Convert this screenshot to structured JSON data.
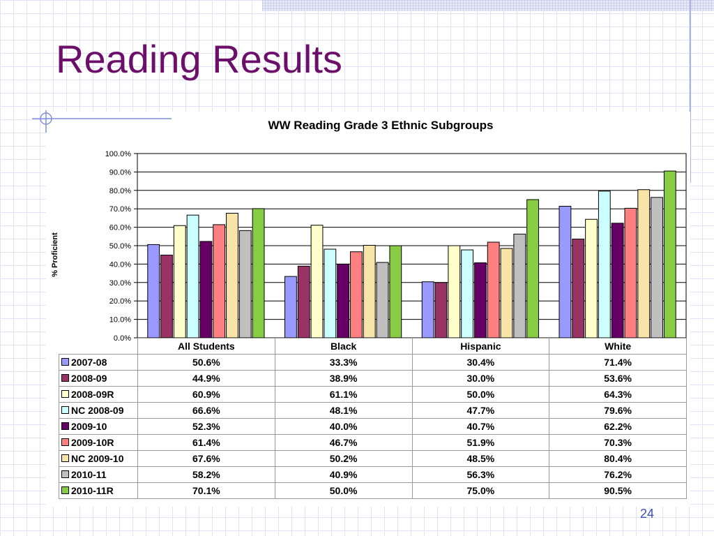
{
  "slide": {
    "title": "Reading Results",
    "page_number": "24"
  },
  "chart_data": {
    "type": "bar",
    "title": "WW Reading Grade 3 Ethnic Subgroups",
    "xlabel": "",
    "ylabel": "% Proficient",
    "ylim": [
      0,
      100
    ],
    "yticks": [
      "100.0%",
      "90.0%",
      "80.0%",
      "70.0%",
      "60.0%",
      "50.0%",
      "40.0%",
      "30.0%",
      "20.0%",
      "10.0%",
      "0.0%"
    ],
    "categories": [
      "All Students",
      "Black",
      "Hispanic",
      "White"
    ],
    "grid": true,
    "legend": "data table below chart",
    "series": [
      {
        "name": "2007-08",
        "color": "#9999ff",
        "values": [
          50.6,
          33.3,
          30.4,
          71.4
        ],
        "labels": [
          "50.6%",
          "33.3%",
          "30.4%",
          "71.4%"
        ]
      },
      {
        "name": "2008-09",
        "color": "#993366",
        "values": [
          44.9,
          38.9,
          30.0,
          53.6
        ],
        "labels": [
          "44.9%",
          "38.9%",
          "30.0%",
          "53.6%"
        ]
      },
      {
        "name": "2008-09R",
        "color": "#ffffcc",
        "values": [
          60.9,
          61.1,
          50.0,
          64.3
        ],
        "labels": [
          "60.9%",
          "61.1%",
          "50.0%",
          "64.3%"
        ]
      },
      {
        "name": "NC 2008-09",
        "color": "#ccffff",
        "values": [
          66.6,
          48.1,
          47.7,
          79.6
        ],
        "labels": [
          "66.6%",
          "48.1%",
          "47.7%",
          "79.6%"
        ]
      },
      {
        "name": "2009-10",
        "color": "#660066",
        "values": [
          52.3,
          40.0,
          40.7,
          62.2
        ],
        "labels": [
          "52.3%",
          "40.0%",
          "40.7%",
          "62.2%"
        ]
      },
      {
        "name": "2009-10R",
        "color": "#ff8080",
        "values": [
          61.4,
          46.7,
          51.9,
          70.3
        ],
        "labels": [
          "61.4%",
          "46.7%",
          "51.9%",
          "70.3%"
        ]
      },
      {
        "name": "NC 2009-10",
        "color": "#f8e4a8",
        "values": [
          67.6,
          50.2,
          48.5,
          80.4
        ],
        "labels": [
          "67.6%",
          "50.2%",
          "48.5%",
          "80.4%"
        ]
      },
      {
        "name": "2010-11",
        "color": "#c0c0c0",
        "values": [
          58.2,
          40.9,
          56.3,
          76.2
        ],
        "labels": [
          "58.2%",
          "40.9%",
          "56.3%",
          "76.2%"
        ]
      },
      {
        "name": "2010-11R",
        "color": "#88cc44",
        "values": [
          70.1,
          50.0,
          75.0,
          90.5
        ],
        "labels": [
          "70.1%",
          "50.0%",
          "75.0%",
          "90.5%"
        ]
      }
    ]
  }
}
